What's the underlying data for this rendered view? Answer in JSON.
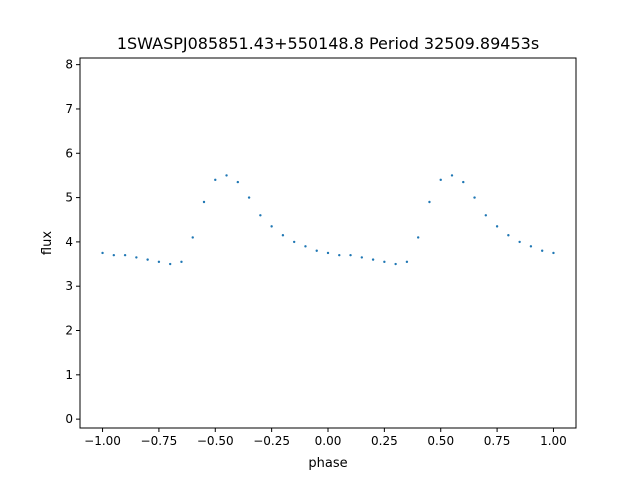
{
  "chart_data": {
    "type": "scatter",
    "title": "1SWASPJ085851.43+550148.8 Period 32509.89453s",
    "xlabel": "phase",
    "ylabel": "flux",
    "xlim": [
      -1.1,
      1.1
    ],
    "ylim": [
      -0.2,
      8.15
    ],
    "xticks": [
      -1.0,
      -0.75,
      -0.5,
      -0.25,
      0.0,
      0.25,
      0.5,
      0.75,
      1.0
    ],
    "xtick_labels": [
      "−1.00",
      "−0.75",
      "−0.50",
      "−0.25",
      "0.00",
      "0.25",
      "0.50",
      "0.75",
      "1.00"
    ],
    "yticks": [
      0,
      1,
      2,
      3,
      4,
      5,
      6,
      7,
      8
    ],
    "ytick_labels": [
      "0",
      "1",
      "2",
      "3",
      "4",
      "5",
      "6",
      "7",
      "8"
    ],
    "grid": false,
    "marker_color": "#1f77b4",
    "series": [
      {
        "x": [
          -1.0,
          -0.95,
          -0.9,
          -0.85,
          -0.8,
          -0.75,
          -0.7,
          -0.65,
          -0.6,
          -0.55,
          -0.5,
          -0.45,
          -0.4,
          -0.35,
          -0.3,
          -0.25,
          -0.2,
          -0.15,
          -0.1,
          -0.05,
          0.0,
          0.05,
          0.1,
          0.15,
          0.2,
          0.25,
          0.3,
          0.35,
          0.4,
          0.45,
          0.5,
          0.55,
          0.6,
          0.65,
          0.7,
          0.75,
          0.8,
          0.85,
          0.9,
          0.95,
          1.0
        ],
        "y": [
          3.75,
          3.7,
          3.7,
          3.65,
          3.6,
          3.55,
          3.5,
          3.55,
          4.1,
          4.9,
          5.4,
          5.5,
          5.35,
          5.0,
          4.6,
          4.35,
          4.15,
          4.0,
          3.9,
          3.8,
          3.75,
          3.7,
          3.7,
          3.65,
          3.6,
          3.55,
          3.5,
          3.55,
          4.1,
          4.9,
          5.4,
          5.5,
          5.35,
          5.0,
          4.6,
          4.35,
          4.15,
          4.0,
          3.9,
          3.8,
          3.75
        ]
      }
    ]
  }
}
